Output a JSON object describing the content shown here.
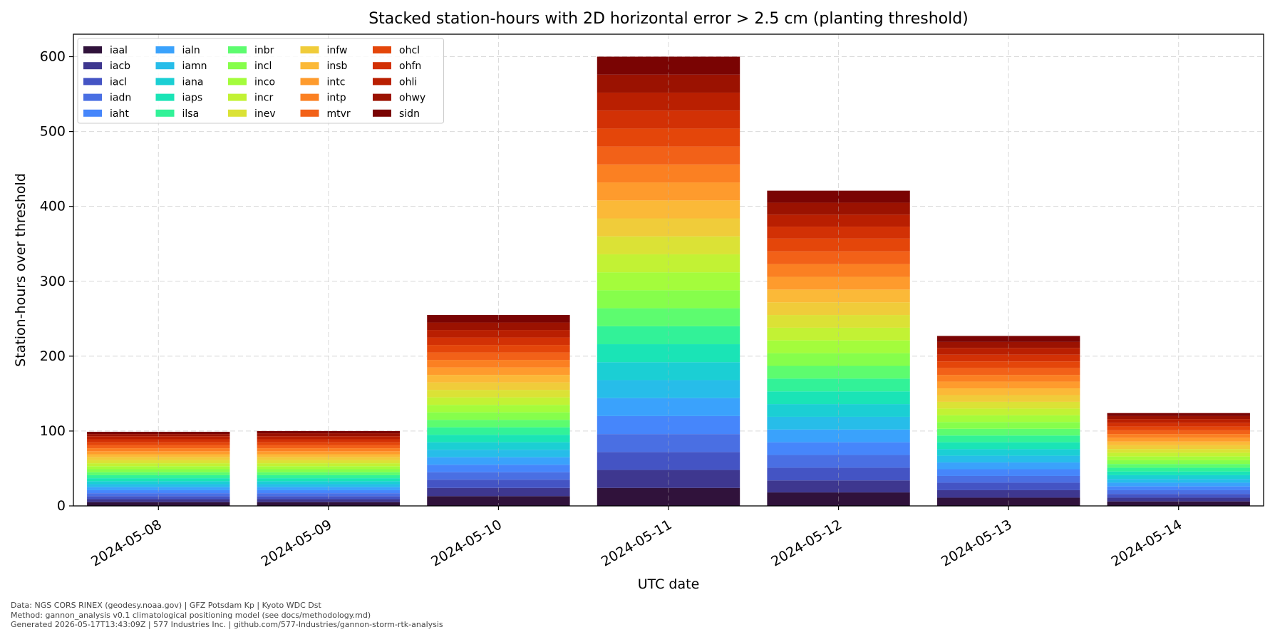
{
  "chart_data": {
    "type": "bar",
    "stacked": true,
    "title": "Stacked station-hours with 2D horizontal error > 2.5 cm (planting threshold)",
    "xlabel": "UTC date",
    "ylabel": "Station-hours over threshold",
    "ylim": [
      0,
      630
    ],
    "yticks": [
      0,
      100,
      200,
      300,
      400,
      500,
      600
    ],
    "grid": true,
    "legend_position": "top-left",
    "legend_columns": 5,
    "categories": [
      "2024-05-08",
      "2024-05-09",
      "2024-05-10",
      "2024-05-11",
      "2024-05-12",
      "2024-05-13",
      "2024-05-14"
    ],
    "series": [
      {
        "name": "iaal",
        "color": "#30123b",
        "values": [
          5,
          5,
          13,
          24,
          18,
          11,
          6
        ]
      },
      {
        "name": "iacb",
        "color": "#3e378f",
        "values": [
          4,
          4,
          11,
          24,
          16,
          10,
          5
        ]
      },
      {
        "name": "iacl",
        "color": "#4454c4",
        "values": [
          4,
          4,
          11,
          24,
          17,
          10,
          5
        ]
      },
      {
        "name": "iadn",
        "color": "#4a6fe3",
        "values": [
          4,
          4,
          10,
          24,
          17,
          9,
          5
        ]
      },
      {
        "name": "iaht",
        "color": "#4686fb",
        "values": [
          4,
          4,
          10,
          24,
          17,
          9,
          5
        ]
      },
      {
        "name": "ialn",
        "color": "#3aa2fc",
        "values": [
          4,
          4,
          10,
          24,
          17,
          9,
          5
        ]
      },
      {
        "name": "iamn",
        "color": "#27bde9",
        "values": [
          4,
          4,
          10,
          24,
          17,
          9,
          5
        ]
      },
      {
        "name": "iana",
        "color": "#1bcfd4",
        "values": [
          4,
          4,
          10,
          24,
          17,
          9,
          5
        ]
      },
      {
        "name": "iaps",
        "color": "#1ae4b6",
        "values": [
          4,
          4,
          10,
          24,
          17,
          9,
          5
        ]
      },
      {
        "name": "ilsa",
        "color": "#32f298",
        "values": [
          4,
          4,
          10,
          24,
          17,
          9,
          5
        ]
      },
      {
        "name": "inbr",
        "color": "#5dfc6f",
        "values": [
          4,
          4,
          10,
          24,
          17,
          9,
          5
        ]
      },
      {
        "name": "incl",
        "color": "#86fe4b",
        "values": [
          4,
          4,
          10,
          24,
          17,
          9,
          5
        ]
      },
      {
        "name": "inco",
        "color": "#a4fc3c",
        "values": [
          4,
          4,
          10,
          24,
          17,
          9,
          5
        ]
      },
      {
        "name": "incr",
        "color": "#c2f234",
        "values": [
          4,
          4,
          10,
          24,
          17,
          9,
          5
        ]
      },
      {
        "name": "inev",
        "color": "#dbe236",
        "values": [
          4,
          4,
          10,
          24,
          17,
          9,
          5
        ]
      },
      {
        "name": "infw",
        "color": "#f0cc3a",
        "values": [
          4,
          4,
          10,
          24,
          17,
          9,
          5
        ]
      },
      {
        "name": "insb",
        "color": "#fbb938",
        "values": [
          4,
          4,
          10,
          24,
          17,
          9,
          5
        ]
      },
      {
        "name": "intc",
        "color": "#fe9b2d",
        "values": [
          4,
          4,
          10,
          24,
          17,
          9,
          5
        ]
      },
      {
        "name": "intp",
        "color": "#fb8022",
        "values": [
          4,
          4,
          10,
          24,
          17,
          9,
          5
        ]
      },
      {
        "name": "mtvr",
        "color": "#f26118",
        "values": [
          4,
          4,
          10,
          24,
          17,
          9,
          5
        ]
      },
      {
        "name": "ohcl",
        "color": "#e4460a",
        "values": [
          4,
          4,
          10,
          24,
          17,
          9,
          5
        ]
      },
      {
        "name": "ohfn",
        "color": "#d23105",
        "values": [
          4,
          4,
          10,
          24,
          16,
          9,
          5
        ]
      },
      {
        "name": "ohli",
        "color": "#b91f01",
        "values": [
          4,
          4,
          10,
          24,
          16,
          9,
          5
        ]
      },
      {
        "name": "ohwy",
        "color": "#9b1201",
        "values": [
          3,
          4,
          10,
          24,
          16,
          8,
          4
        ]
      },
      {
        "name": "sidn",
        "color": "#7a0403",
        "values": [
          3,
          3,
          10,
          24,
          16,
          8,
          4
        ]
      }
    ]
  },
  "footer": {
    "line1": "Data: NGS CORS RINEX (geodesy.noaa.gov) | GFZ Potsdam Kp | Kyoto WDC Dst",
    "line2": "Method: gannon_analysis v0.1 climatological positioning model (see docs/methodology.md)",
    "line3": "Generated 2026-05-17T13:43:09Z | 577 Industries Inc. | github.com/577-Industries/gannon-storm-rtk-analysis"
  }
}
